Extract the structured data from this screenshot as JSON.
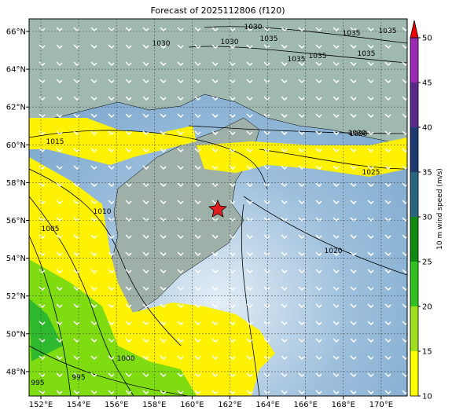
{
  "title": "Forecast of 2025112806 (f120)",
  "lat_labels": [
    "66°N",
    "64°N",
    "62°N",
    "60°N",
    "58°N",
    "56°N",
    "54°N",
    "52°N",
    "50°N",
    "48°N"
  ],
  "lon_labels": [
    "152°E",
    "154°E",
    "156°E",
    "158°E",
    "160°E",
    "162°E",
    "164°E",
    "166°E",
    "168°E",
    "170°E"
  ],
  "isobar_labels": [
    "1030",
    "1030",
    "1035",
    "1030",
    "1035",
    "1035",
    "1035",
    "1035",
    "1035",
    "1030",
    "1015",
    "1030",
    "1025",
    "1010",
    "1005",
    "1020",
    "1000",
    "995",
    "995"
  ],
  "colorbar": {
    "label": "10 m wind speed (m/s)",
    "ticks": [
      10,
      15,
      20,
      25,
      30,
      35,
      40,
      45,
      50
    ],
    "colors": [
      "#ffff00",
      "#a0e020",
      "#30c020",
      "#108a10",
      "#2a6680",
      "#1e3a70",
      "#5a2a8a",
      "#9a2ab0"
    ],
    "extend_color": "#ee0000"
  }
}
